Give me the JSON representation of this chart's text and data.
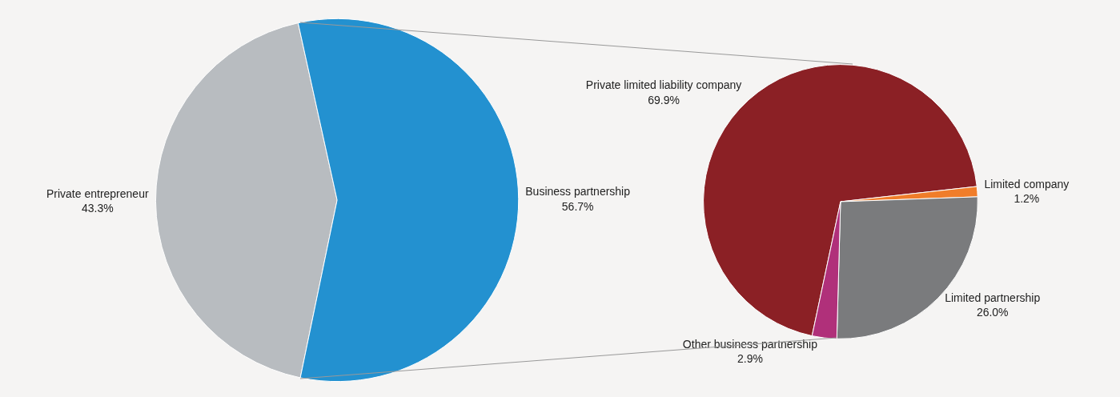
{
  "chart_data": [
    {
      "type": "pie",
      "categories": [
        "Private entrepreneur",
        "Business partnership"
      ],
      "values": [
        43.3,
        56.7
      ],
      "value_labels": [
        "43.3%",
        "56.7%"
      ],
      "colors": [
        "#b8bcc0",
        "#2391d0"
      ],
      "legend": false
    },
    {
      "type": "pie",
      "categories": [
        "Private limited liability company",
        "Limited company",
        "Limited partnership",
        "Other business partnership"
      ],
      "values": [
        69.9,
        1.2,
        26.0,
        2.9
      ],
      "value_labels": [
        "69.9%",
        "1.2%",
        "26.0%",
        "2.9%"
      ],
      "colors": [
        "#8b2025",
        "#f07d2a",
        "#7a7b7d",
        "#b0307a"
      ],
      "legend": false
    }
  ]
}
